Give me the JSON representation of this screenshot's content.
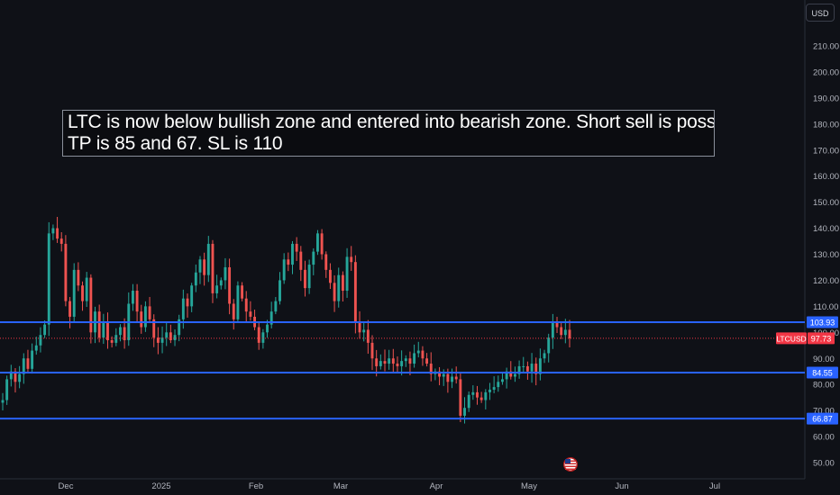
{
  "header": {
    "currency_label": "USD"
  },
  "annotation": {
    "line1": "LTC is now below bullish zone and entered into bearish zone. Short sell is possible.",
    "line2": "TP is 85 and 67. SL is 110"
  },
  "colors": {
    "background": "#0f1117",
    "up": "#26a69a",
    "down": "#ef5350",
    "level_line": "#2962ff",
    "level_label_bg": "#2962ff",
    "price_label_bg": "#f23645"
  },
  "chart_data": {
    "type": "candlestick",
    "symbol": "LTCUSD",
    "last_price": 97.73,
    "y_ticks": [
      50,
      60,
      70,
      80,
      90,
      100,
      110,
      120,
      130,
      140,
      150,
      160,
      170,
      180,
      190,
      200,
      210
    ],
    "y_tick_labels": [
      "50.00",
      "60.00",
      "70.00",
      "80.00",
      "90.00",
      "100.00",
      "110.00",
      "120.00",
      "130.00",
      "140.00",
      "150.00",
      "160.00",
      "170.00",
      "180.00",
      "190.00",
      "200.00",
      "210.00"
    ],
    "ylim": [
      47,
      222
    ],
    "x_tick_labels": [
      "Dec",
      "2025",
      "Feb",
      "Mar",
      "Apr",
      "May",
      "Jun",
      "Jul"
    ],
    "horizontal_levels": [
      {
        "value": 103.93,
        "label": "103.93"
      },
      {
        "value": 84.55,
        "label": "84.55"
      },
      {
        "value": 66.87,
        "label": "66.87"
      }
    ],
    "path": [
      74,
      82,
      85,
      81,
      84,
      90,
      86,
      93,
      95,
      99,
      103,
      138,
      140,
      136,
      134,
      112,
      106,
      124,
      118,
      112,
      121,
      100,
      108,
      98,
      104,
      97,
      96,
      99,
      102,
      97,
      111,
      116,
      108,
      102,
      110,
      105,
      98,
      96,
      98,
      100,
      97,
      99,
      105,
      113,
      110,
      118,
      123,
      128,
      122,
      134,
      115,
      118,
      120,
      125,
      111,
      105,
      118,
      113,
      108,
      106,
      102,
      96,
      100,
      103,
      108,
      112,
      120,
      128,
      126,
      134,
      131,
      124,
      117,
      126,
      131,
      138,
      130,
      124,
      119,
      112,
      122,
      116,
      129,
      127,
      104,
      100,
      101,
      96,
      90,
      87,
      89,
      88,
      90,
      88,
      87,
      89,
      90,
      88,
      92,
      93,
      90,
      88,
      84,
      85,
      83,
      84,
      81,
      83,
      82,
      68,
      71,
      76,
      77,
      75,
      74,
      77,
      78,
      79,
      81,
      82,
      85,
      83,
      84,
      87,
      87,
      85,
      88,
      84,
      90,
      92,
      98,
      104,
      102,
      99,
      101,
      97.73
    ],
    "price_label": {
      "symbol": "LTCUSD",
      "value": "97.73"
    }
  },
  "flag_icon": "us-flag-icon"
}
